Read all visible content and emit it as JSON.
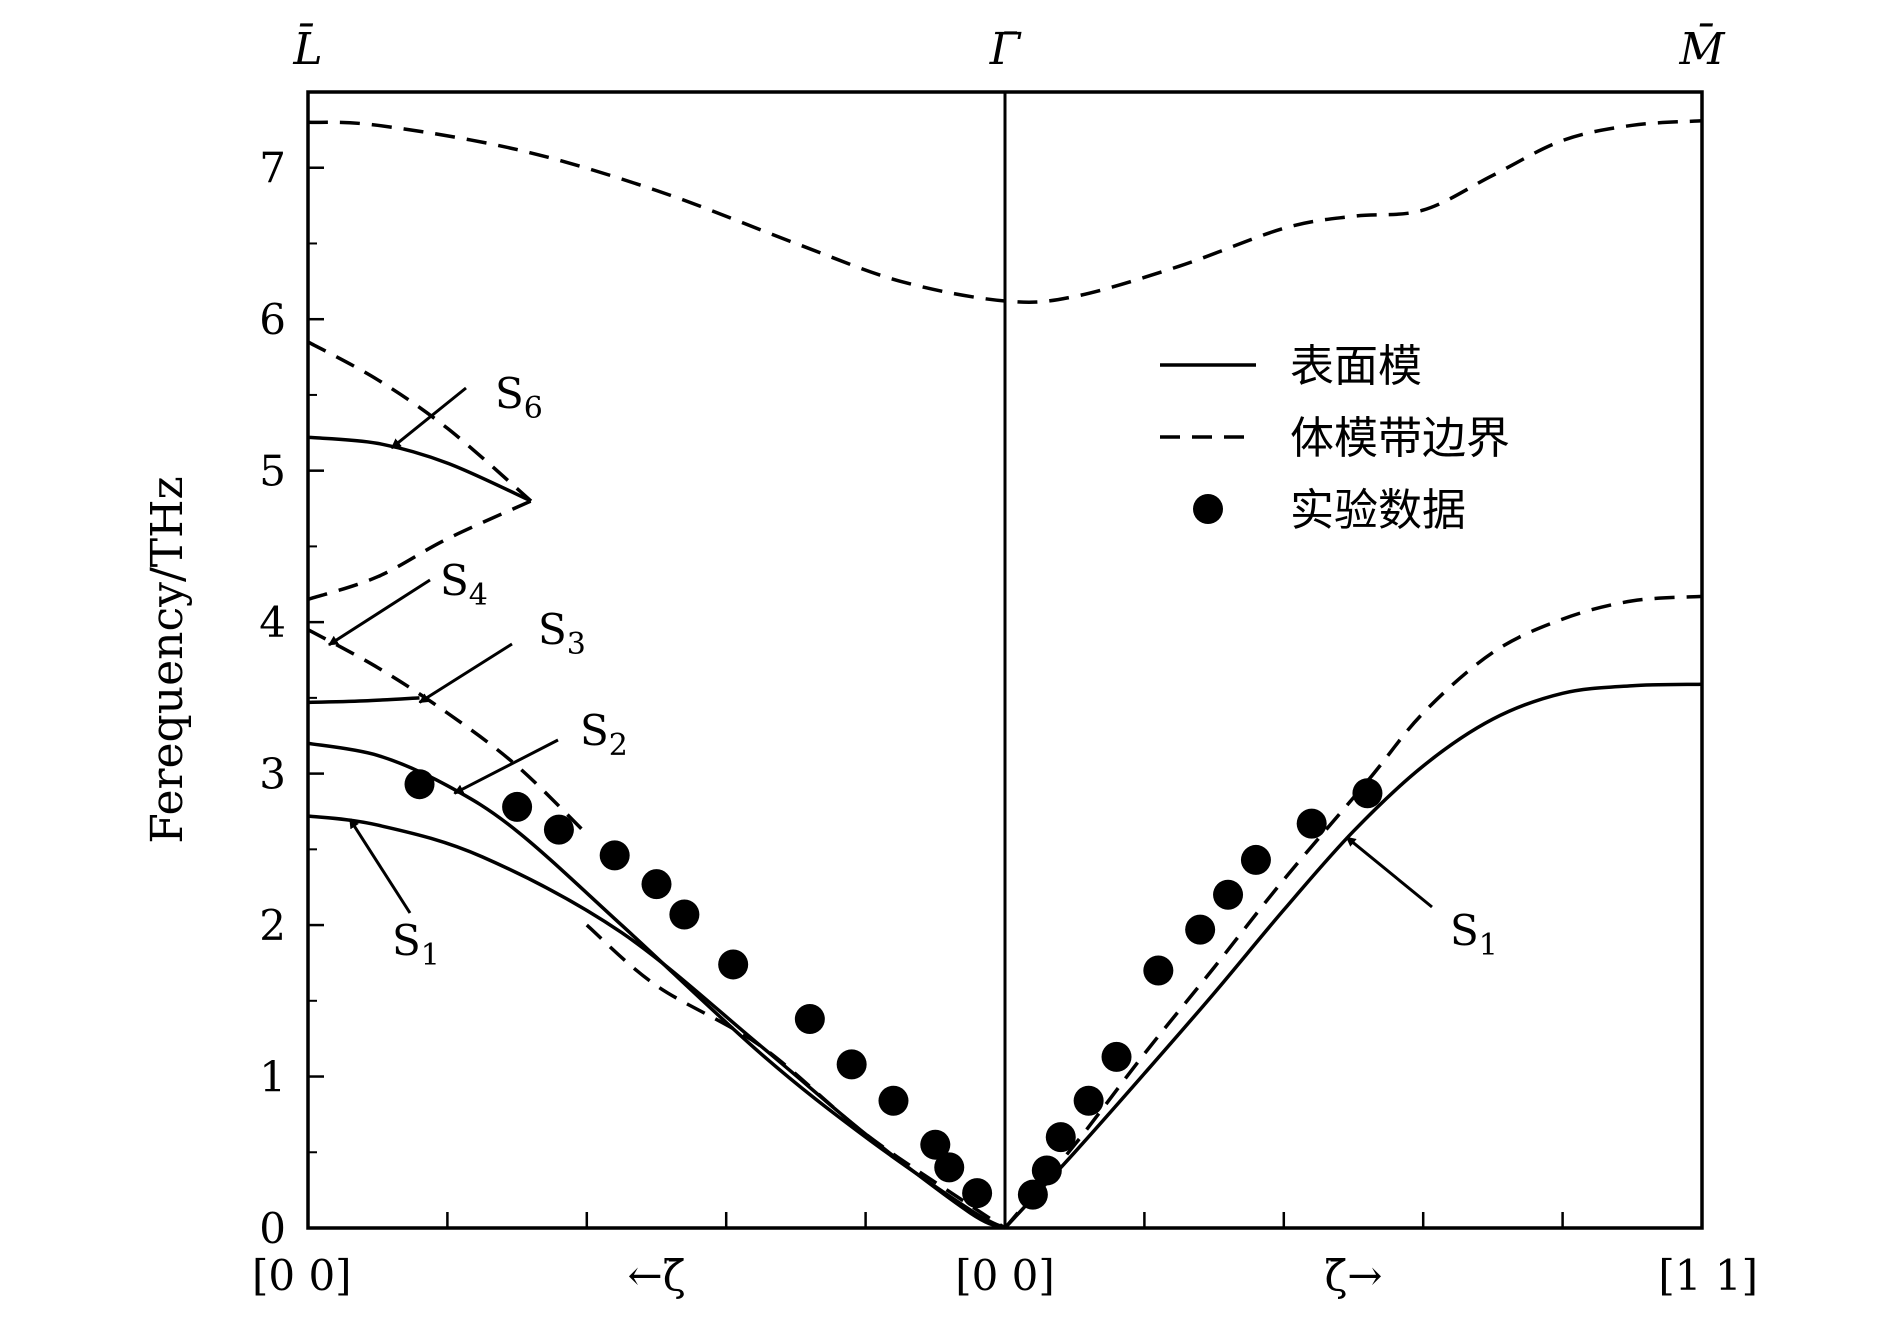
{
  "chart_data": {
    "type": "line",
    "ylabel": "Ferequency/THz",
    "ylim": [
      0,
      7.5
    ],
    "xlim": [
      -1,
      1
    ],
    "yticks": [
      0,
      1,
      2,
      3,
      4,
      5,
      6,
      7
    ],
    "x_labels": [
      {
        "x": -1,
        "text": "[0 0]"
      },
      {
        "x": -0.5,
        "text": "←ζ̄"
      },
      {
        "x": 0,
        "text": "[0 0]"
      },
      {
        "x": 0.5,
        "text": "ζ̄→"
      },
      {
        "x": 1,
        "text": "[1 1]"
      }
    ],
    "top_labels": [
      {
        "x": -1,
        "text": "L̄"
      },
      {
        "x": 0,
        "text": "Γ̄"
      },
      {
        "x": 1,
        "text": "M̄"
      }
    ],
    "legend": {
      "position": "right-middle",
      "items": [
        {
          "label": "表面模",
          "style": "solid"
        },
        {
          "label": "体模带边界",
          "style": "dashed"
        },
        {
          "label": "实验数据",
          "style": "marker"
        }
      ]
    },
    "series": [
      {
        "style": "dashed",
        "points": [
          [
            -1,
            7.3
          ],
          [
            -0.9,
            7.28
          ],
          [
            -0.7,
            7.12
          ],
          [
            -0.5,
            6.85
          ],
          [
            -0.3,
            6.5
          ],
          [
            -0.15,
            6.25
          ],
          [
            0,
            6.12
          ],
          [
            0.1,
            6.15
          ],
          [
            0.25,
            6.35
          ],
          [
            0.4,
            6.6
          ],
          [
            0.5,
            6.68
          ],
          [
            0.6,
            6.72
          ],
          [
            0.7,
            6.95
          ],
          [
            0.8,
            7.18
          ],
          [
            0.9,
            7.28
          ],
          [
            1,
            7.31
          ]
        ]
      },
      {
        "style": "dashed",
        "points": [
          [
            0,
            0
          ],
          [
            0.1,
            0.55
          ],
          [
            0.2,
            1.15
          ],
          [
            0.3,
            1.72
          ],
          [
            0.4,
            2.3
          ],
          [
            0.52,
            2.95
          ],
          [
            0.6,
            3.4
          ],
          [
            0.7,
            3.8
          ],
          [
            0.8,
            4.02
          ],
          [
            0.9,
            4.14
          ],
          [
            1,
            4.17
          ]
        ]
      },
      {
        "style": "solid",
        "points": [
          [
            0,
            0
          ],
          [
            0.1,
            0.5
          ],
          [
            0.2,
            1.02
          ],
          [
            0.3,
            1.55
          ],
          [
            0.4,
            2.1
          ],
          [
            0.5,
            2.62
          ],
          [
            0.6,
            3.05
          ],
          [
            0.7,
            3.36
          ],
          [
            0.8,
            3.53
          ],
          [
            0.9,
            3.58
          ],
          [
            1,
            3.59
          ]
        ]
      },
      {
        "style": "solid",
        "points": [
          [
            -1,
            2.72
          ],
          [
            -0.9,
            2.66
          ],
          [
            -0.75,
            2.45
          ],
          [
            -0.55,
            1.95
          ],
          [
            -0.35,
            1.2
          ],
          [
            -0.2,
            0.62
          ],
          [
            -0.05,
            0.1
          ],
          [
            0,
            0
          ]
        ]
      },
      {
        "style": "solid",
        "points": [
          [
            -1,
            3.2
          ],
          [
            -0.9,
            3.12
          ],
          [
            -0.8,
            2.92
          ],
          [
            -0.7,
            2.62
          ],
          [
            -0.55,
            2.0
          ],
          [
            -0.35,
            1.15
          ],
          [
            -0.2,
            0.6
          ],
          [
            -0.05,
            0.12
          ],
          [
            0,
            0
          ]
        ]
      },
      {
        "style": "dashed",
        "points": [
          [
            -0.6,
            2.0
          ],
          [
            -0.5,
            1.6
          ],
          [
            -0.35,
            1.2
          ],
          [
            -0.2,
            0.62
          ],
          [
            -0.05,
            0.15
          ],
          [
            0,
            0
          ]
        ]
      },
      {
        "style": "dashed",
        "points": [
          [
            -1,
            3.95
          ],
          [
            -0.9,
            3.7
          ],
          [
            -0.8,
            3.4
          ],
          [
            -0.7,
            3.05
          ],
          [
            -0.6,
            2.6
          ]
        ]
      },
      {
        "style": "solid",
        "points": [
          [
            -1,
            3.47
          ],
          [
            -0.92,
            3.48
          ],
          [
            -0.84,
            3.5
          ]
        ]
      },
      {
        "style": "dashed",
        "points": [
          [
            -1,
            4.15
          ],
          [
            -0.9,
            4.3
          ],
          [
            -0.8,
            4.55
          ],
          [
            -0.68,
            4.8
          ]
        ]
      },
      {
        "style": "solid",
        "points": [
          [
            -1,
            5.22
          ],
          [
            -0.9,
            5.18
          ],
          [
            -0.8,
            5.05
          ],
          [
            -0.68,
            4.8
          ]
        ]
      },
      {
        "style": "dashed",
        "points": [
          [
            -1,
            5.85
          ],
          [
            -0.9,
            5.6
          ],
          [
            -0.8,
            5.28
          ],
          [
            -0.68,
            4.8
          ]
        ]
      }
    ],
    "experimental": [
      [
        -0.84,
        2.93
      ],
      [
        -0.7,
        2.78
      ],
      [
        -0.64,
        2.63
      ],
      [
        -0.56,
        2.46
      ],
      [
        -0.5,
        2.27
      ],
      [
        -0.46,
        2.07
      ],
      [
        -0.39,
        1.74
      ],
      [
        -0.28,
        1.38
      ],
      [
        -0.22,
        1.08
      ],
      [
        -0.16,
        0.84
      ],
      [
        -0.1,
        0.55
      ],
      [
        -0.08,
        0.4
      ],
      [
        -0.04,
        0.23
      ],
      [
        0.04,
        0.22
      ],
      [
        0.06,
        0.38
      ],
      [
        0.08,
        0.6
      ],
      [
        0.12,
        0.84
      ],
      [
        0.16,
        1.13
      ],
      [
        0.22,
        1.7
      ],
      [
        0.28,
        1.97
      ],
      [
        0.32,
        2.2
      ],
      [
        0.36,
        2.43
      ],
      [
        0.44,
        2.67
      ],
      [
        0.52,
        2.87
      ]
    ],
    "annotations": [
      {
        "name": "S6",
        "label": "S",
        "sub": "6",
        "target": [
          -0.88,
          5.15
        ]
      },
      {
        "name": "S4",
        "label": "S",
        "sub": "4",
        "target": [
          -0.97,
          3.85
        ]
      },
      {
        "name": "S3",
        "label": "S",
        "sub": "3",
        "target": [
          -0.84,
          3.47
        ]
      },
      {
        "name": "S2",
        "label": "S",
        "sub": "2",
        "target": [
          -0.79,
          2.87
        ]
      },
      {
        "name": "S1-left",
        "label": "S",
        "sub": "1",
        "target": [
          -0.94,
          2.7
        ]
      },
      {
        "name": "S1-right",
        "label": "S",
        "sub": "1",
        "target": [
          0.49,
          2.58
        ]
      }
    ]
  }
}
